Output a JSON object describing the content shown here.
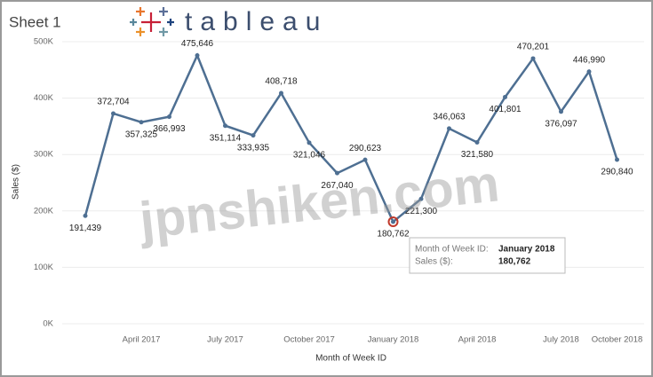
{
  "header": {
    "sheet_title": "Sheet 1",
    "logo_text": "tableau"
  },
  "watermark": "jpnshiken.com",
  "chart_data": {
    "type": "line",
    "y_label": "Sales ($)",
    "x_label": "Month of Week ID",
    "categories": [
      null,
      null,
      "April 2017",
      null,
      null,
      "July 2017",
      null,
      null,
      "October 2017",
      null,
      null,
      "January 2018",
      null,
      null,
      "April 2018",
      null,
      null,
      "July 2018",
      null,
      "October 2018"
    ],
    "series": [
      {
        "name": "Sales",
        "color": "#4e6f92",
        "values": [
          191439,
          372704,
          357325,
          366993,
          475646,
          351114,
          333935,
          408718,
          321046,
          267040,
          290623,
          180762,
          221300,
          346063,
          321580,
          401801,
          470201,
          376097,
          446990,
          290840
        ],
        "value_labels": [
          "191,439",
          "372,704",
          "357,325",
          "366,993",
          "475,646",
          "351,114",
          "333,935",
          "408,718",
          "321,046",
          "267,040",
          "290,623",
          "180,762",
          "221,300",
          "346,063",
          "321,580",
          "401,801",
          "470,201",
          "376,097",
          "446,990",
          "290,840"
        ]
      }
    ],
    "ylim": [
      0,
      500000
    ],
    "yticks": [
      {
        "value": 0,
        "label": "0K"
      },
      {
        "value": 100000,
        "label": "100K"
      },
      {
        "value": 200000,
        "label": "200K"
      },
      {
        "value": 300000,
        "label": "300K"
      },
      {
        "value": 400000,
        "label": "400K"
      },
      {
        "value": 500000,
        "label": "500K"
      }
    ],
    "grid": true,
    "tooltip": {
      "rows": [
        {
          "label": "Month of Week ID:",
          "value": "January 2018"
        },
        {
          "label": "Sales ($):",
          "value": "180,762"
        }
      ]
    }
  }
}
